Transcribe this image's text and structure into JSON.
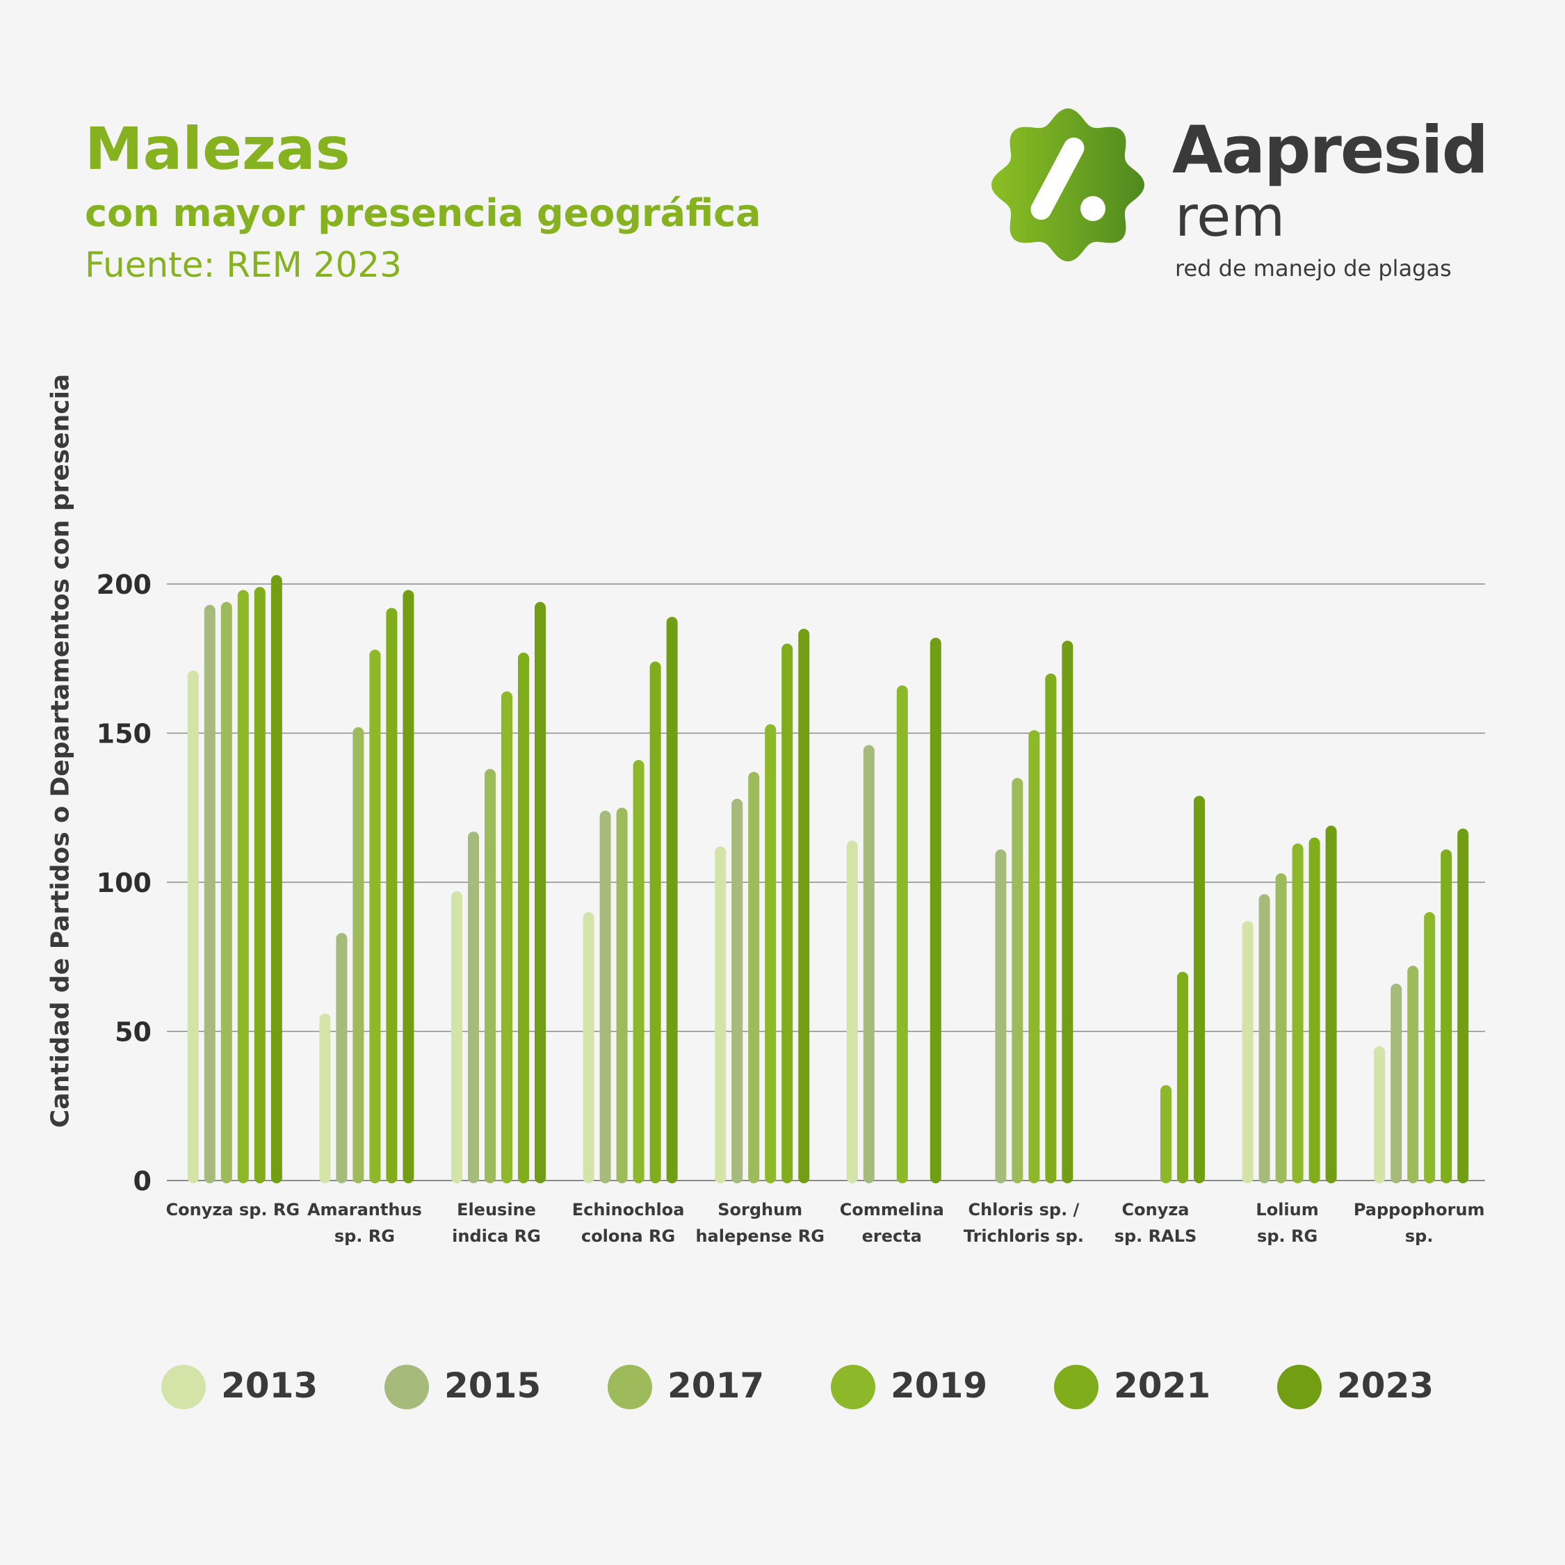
{
  "header": {
    "title": "Malezas",
    "subtitle": "con mayor presencia geográfica",
    "source": "Fuente: REM 2023"
  },
  "logo": {
    "brand": "Aapresid",
    "product": "rem",
    "tagline": "red de manejo de plagas",
    "colors": [
      "#86b21f",
      "#5a8c1e"
    ]
  },
  "chart_data": {
    "type": "bar",
    "ylabel": "Cantidad de Partidos o Departamentos con presencia",
    "xlabel": "",
    "ylim": [
      0,
      200
    ],
    "yticks": [
      0,
      50,
      100,
      150,
      200
    ],
    "grid": true,
    "legend_position": "bottom",
    "categories": [
      [
        "Conyza sp. RG"
      ],
      [
        "Amaranthus",
        "sp. RG"
      ],
      [
        "Eleusine",
        "indica RG"
      ],
      [
        "Echinochloa",
        "colona RG"
      ],
      [
        "Sorghum",
        "halepense RG"
      ],
      [
        "Commelina",
        "erecta"
      ],
      [
        "Chloris sp. /",
        "Trichloris sp."
      ],
      [
        "Conyza",
        "sp. RALS"
      ],
      [
        "Lolium",
        "sp. RG"
      ],
      [
        "Pappophorum",
        "sp."
      ]
    ],
    "series": [
      {
        "name": "2013",
        "color": "#d4e4a9",
        "values": [
          171,
          56,
          97,
          90,
          112,
          114,
          null,
          null,
          87,
          45
        ]
      },
      {
        "name": "2015",
        "color": "#a6ba7c",
        "values": [
          193,
          83,
          117,
          124,
          128,
          146,
          111,
          null,
          96,
          66
        ]
      },
      {
        "name": "2017",
        "color": "#9ebb5c",
        "values": [
          194,
          152,
          138,
          125,
          137,
          null,
          135,
          null,
          103,
          72
        ]
      },
      {
        "name": "2019",
        "color": "#8db82a",
        "values": [
          198,
          178,
          164,
          141,
          153,
          166,
          151,
          32,
          113,
          90
        ]
      },
      {
        "name": "2021",
        "color": "#80ad1c",
        "values": [
          199,
          192,
          177,
          174,
          180,
          null,
          170,
          70,
          115,
          111
        ]
      },
      {
        "name": "2023",
        "color": "#729e14",
        "values": [
          203,
          198,
          194,
          189,
          185,
          182,
          181,
          129,
          119,
          118
        ]
      }
    ]
  }
}
